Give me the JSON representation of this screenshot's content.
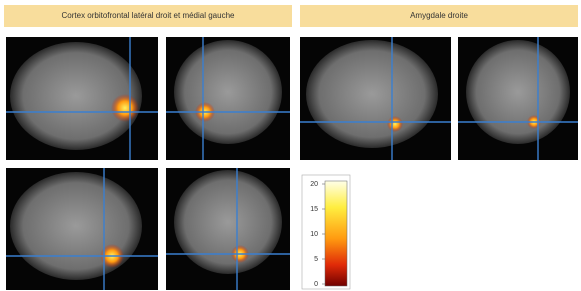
{
  "headers": [
    "Cortex orbitofrontal latéral droit et médial gauche",
    "Amygdale droite"
  ],
  "colorbar": {
    "lim": [
      0,
      20
    ],
    "ticks": [
      0,
      5,
      10,
      15,
      20
    ]
  }
}
